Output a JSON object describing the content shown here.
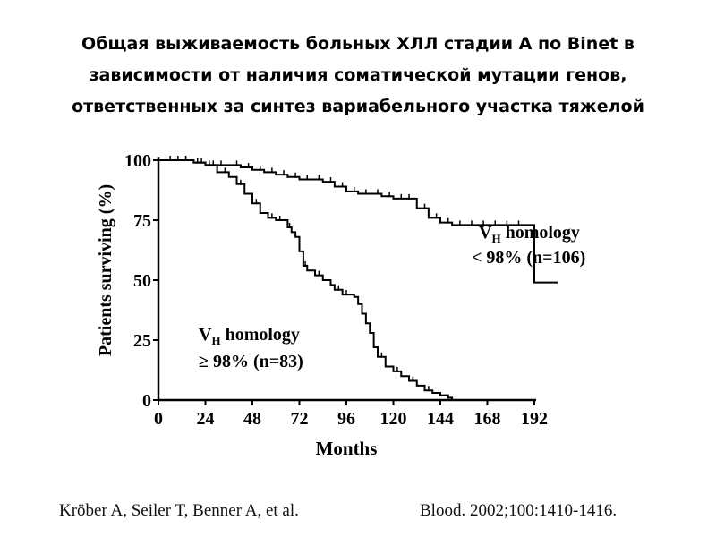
{
  "title_lines": [
    "Общая выживаемость больных ХЛЛ стадии А по Binet в",
    "зависимости от наличия соматической мутации генов,",
    "ответственных за синтез вариабельного участка тяжелой"
  ],
  "chart_data": {
    "type": "line",
    "xlabel": "Months",
    "ylabel": "Patients surviving (%)",
    "xticks": [
      "0",
      "24",
      "48",
      "72",
      "96",
      "120",
      "144",
      "168",
      "192"
    ],
    "yticks": [
      "0",
      "25",
      "50",
      "75",
      "100"
    ],
    "xlim": [
      0,
      192
    ],
    "ylim": [
      0,
      100
    ],
    "series": [
      {
        "name": "VH homology < 98% (n=106)",
        "label_lines": [
          "V",
          "H",
          " homology",
          "< 98% (n=106)"
        ],
        "points": [
          [
            0,
            100
          ],
          [
            12,
            100
          ],
          [
            18,
            99
          ],
          [
            24,
            98
          ],
          [
            30,
            98
          ],
          [
            36,
            98
          ],
          [
            42,
            97
          ],
          [
            48,
            96
          ],
          [
            54,
            95
          ],
          [
            60,
            94
          ],
          [
            66,
            93
          ],
          [
            72,
            92
          ],
          [
            78,
            92
          ],
          [
            84,
            91
          ],
          [
            90,
            89
          ],
          [
            96,
            87
          ],
          [
            102,
            86
          ],
          [
            108,
            86
          ],
          [
            114,
            85
          ],
          [
            120,
            84
          ],
          [
            126,
            84
          ],
          [
            132,
            80
          ],
          [
            138,
            76
          ],
          [
            144,
            74
          ],
          [
            150,
            73
          ],
          [
            156,
            73
          ],
          [
            162,
            73
          ],
          [
            168,
            73
          ],
          [
            174,
            73
          ],
          [
            180,
            73
          ],
          [
            186,
            73
          ],
          [
            188,
            73
          ],
          [
            190,
            73
          ],
          [
            192,
            49
          ],
          [
            204,
            49
          ]
        ],
        "censor_x": [
          6,
          10,
          14,
          20,
          26,
          32,
          40,
          46,
          52,
          58,
          64,
          70,
          76,
          82,
          88,
          94,
          100,
          106,
          112,
          118,
          124,
          128,
          136,
          142,
          148,
          154,
          160,
          166,
          172,
          178,
          184
        ]
      },
      {
        "name": "VH homology ≥ 98% (n=83)",
        "label_lines": [
          "V",
          "H",
          " homology",
          "≥ 98% (n=83)"
        ],
        "points": [
          [
            0,
            100
          ],
          [
            12,
            100
          ],
          [
            18,
            99
          ],
          [
            24,
            98
          ],
          [
            30,
            95
          ],
          [
            36,
            93
          ],
          [
            40,
            90
          ],
          [
            44,
            86
          ],
          [
            48,
            82
          ],
          [
            52,
            78
          ],
          [
            56,
            76
          ],
          [
            60,
            75
          ],
          [
            64,
            75
          ],
          [
            66,
            72
          ],
          [
            68,
            70
          ],
          [
            70,
            68
          ],
          [
            72,
            62
          ],
          [
            74,
            56
          ],
          [
            76,
            54
          ],
          [
            78,
            54
          ],
          [
            80,
            52
          ],
          [
            84,
            50
          ],
          [
            88,
            48
          ],
          [
            90,
            46
          ],
          [
            94,
            44
          ],
          [
            98,
            44
          ],
          [
            100,
            43
          ],
          [
            102,
            40
          ],
          [
            104,
            36
          ],
          [
            106,
            32
          ],
          [
            108,
            28
          ],
          [
            110,
            22
          ],
          [
            112,
            18
          ],
          [
            116,
            14
          ],
          [
            120,
            12
          ],
          [
            124,
            10
          ],
          [
            128,
            8
          ],
          [
            132,
            6
          ],
          [
            136,
            4
          ],
          [
            140,
            3
          ],
          [
            144,
            2
          ],
          [
            148,
            1
          ],
          [
            150,
            0
          ]
        ],
        "censor_x": [
          14,
          22,
          28,
          34,
          42,
          50,
          58,
          62,
          67,
          75,
          82,
          92,
          96,
          106,
          114,
          122,
          130,
          138
        ]
      }
    ]
  },
  "citation": {
    "authors": "Kröber A, Seiler T, Benner A, et al.",
    "journal": "Blood. 2002;100:1410-1416."
  }
}
